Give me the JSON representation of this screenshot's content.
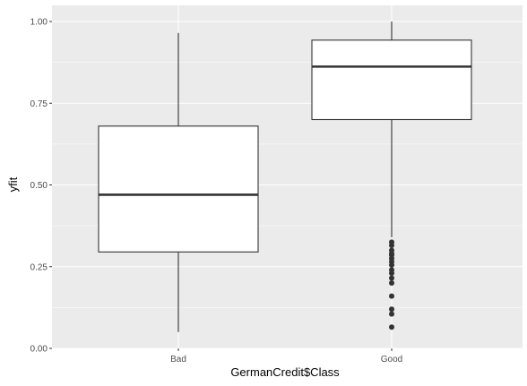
{
  "chart_data": {
    "type": "boxplot",
    "xlabel": "GermanCredit$Class",
    "ylabel": "yfit",
    "ylim": [
      0.0,
      1.0
    ],
    "y_ticks": [
      0.0,
      0.25,
      0.5,
      0.75,
      1.0
    ],
    "y_tick_labels": [
      "0.00",
      "0.25",
      "0.50",
      "0.75",
      "1.00"
    ],
    "categories": [
      "Bad",
      "Good"
    ],
    "boxes": [
      {
        "category": "Bad",
        "whisker_low": 0.05,
        "q1": 0.295,
        "median": 0.47,
        "q3": 0.68,
        "whisker_high": 0.965,
        "outliers": []
      },
      {
        "category": "Good",
        "whisker_low": 0.34,
        "q1": 0.7,
        "median": 0.862,
        "q3": 0.943,
        "whisker_high": 1.0,
        "outliers": [
          0.325,
          0.315,
          0.3,
          0.29,
          0.285,
          0.275,
          0.265,
          0.255,
          0.24,
          0.23,
          0.215,
          0.2,
          0.16,
          0.12,
          0.105,
          0.065
        ]
      }
    ],
    "grid": true,
    "legend": "none",
    "colors": {
      "panel_background": "#ebebeb",
      "grid_major": "#ffffff",
      "box_fill": "#ffffff",
      "box_line": "#333333",
      "outlier": "#333333",
      "tick_text": "#4d4d4d"
    }
  }
}
